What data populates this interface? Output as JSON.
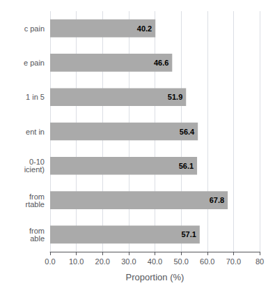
{
  "chart_data": {
    "type": "bar",
    "orientation": "horizontal",
    "categories": [
      "c pain",
      "e pain",
      "1 in 5",
      "ent in",
      "0-10\nicient)",
      "from\nrtable",
      "from\nable"
    ],
    "values": [
      40.2,
      46.6,
      51.9,
      56.4,
      56.1,
      67.8,
      57.1
    ],
    "color": "#aaaaaa",
    "xlabel": "Proportion (%)",
    "xlim": [
      0,
      80
    ],
    "xticks": [
      {
        "value": 0,
        "label": "0.0"
      },
      {
        "value": 10,
        "label": "10.0"
      },
      {
        "value": 20,
        "label": "20.0"
      },
      {
        "value": 30,
        "label": "30.0"
      },
      {
        "value": 40,
        "label": "40.0"
      },
      {
        "value": 50,
        "label": "50.0"
      },
      {
        "value": 60,
        "label": "60.0"
      },
      {
        "value": 70,
        "label": "70.0"
      },
      80
    ],
    "grid": true,
    "data_labels": true
  }
}
